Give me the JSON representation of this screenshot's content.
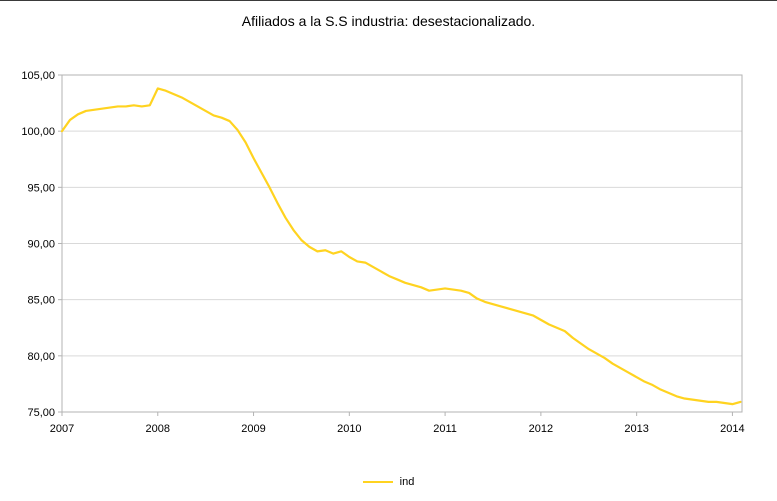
{
  "title": "Afiliados a la S.S industria: desestacionalizado.",
  "legend": {
    "label": "ind"
  },
  "colors": {
    "series_line": "#FFD320",
    "gridline": "#d9d9d9",
    "axis": "#b3b3b3",
    "text": "#000000"
  },
  "chart_data": {
    "type": "line",
    "title": "Afiliados a la S.S industria: desestacionalizado.",
    "xlabel": "",
    "ylabel": "",
    "grid": true,
    "legend_position": "bottom",
    "xlim": [
      2007,
      2014.1
    ],
    "ylim": [
      75,
      105
    ],
    "x_tick_values": [
      2007,
      2008,
      2009,
      2010,
      2011,
      2012,
      2013,
      2014
    ],
    "x_tick_labels": [
      "2007",
      "2008",
      "2009",
      "2010",
      "2011",
      "2012",
      "2013",
      "2014"
    ],
    "y_tick_values": [
      75,
      80,
      85,
      90,
      95,
      100,
      105
    ],
    "y_tick_labels": [
      "75,00",
      "80,00",
      "85,00",
      "90,00",
      "95,00",
      "100,00",
      "105,00"
    ],
    "series": [
      {
        "name": "ind",
        "color": "#FFD320",
        "x_start": 2007,
        "x_step_years": 0.0833333,
        "values": [
          100.0,
          101.0,
          101.5,
          101.8,
          101.9,
          102.0,
          102.1,
          102.2,
          102.2,
          102.3,
          102.2,
          102.3,
          103.8,
          103.6,
          103.3,
          103.0,
          102.6,
          102.2,
          101.8,
          101.4,
          101.2,
          100.9,
          100.1,
          99.0,
          97.6,
          96.3,
          95.0,
          93.6,
          92.3,
          91.2,
          90.3,
          89.7,
          89.3,
          89.4,
          89.1,
          89.3,
          88.8,
          88.4,
          88.3,
          87.9,
          87.5,
          87.1,
          86.8,
          86.5,
          86.3,
          86.1,
          85.8,
          85.9,
          86.0,
          85.9,
          85.8,
          85.6,
          85.1,
          84.8,
          84.6,
          84.4,
          84.2,
          84.0,
          83.8,
          83.6,
          83.2,
          82.8,
          82.5,
          82.2,
          81.6,
          81.1,
          80.6,
          80.2,
          79.8,
          79.3,
          78.9,
          78.5,
          78.1,
          77.7,
          77.4,
          77.0,
          76.7,
          76.4,
          76.2,
          76.1,
          76.0,
          75.9,
          75.9,
          75.8,
          75.7,
          75.9
        ]
      }
    ]
  }
}
